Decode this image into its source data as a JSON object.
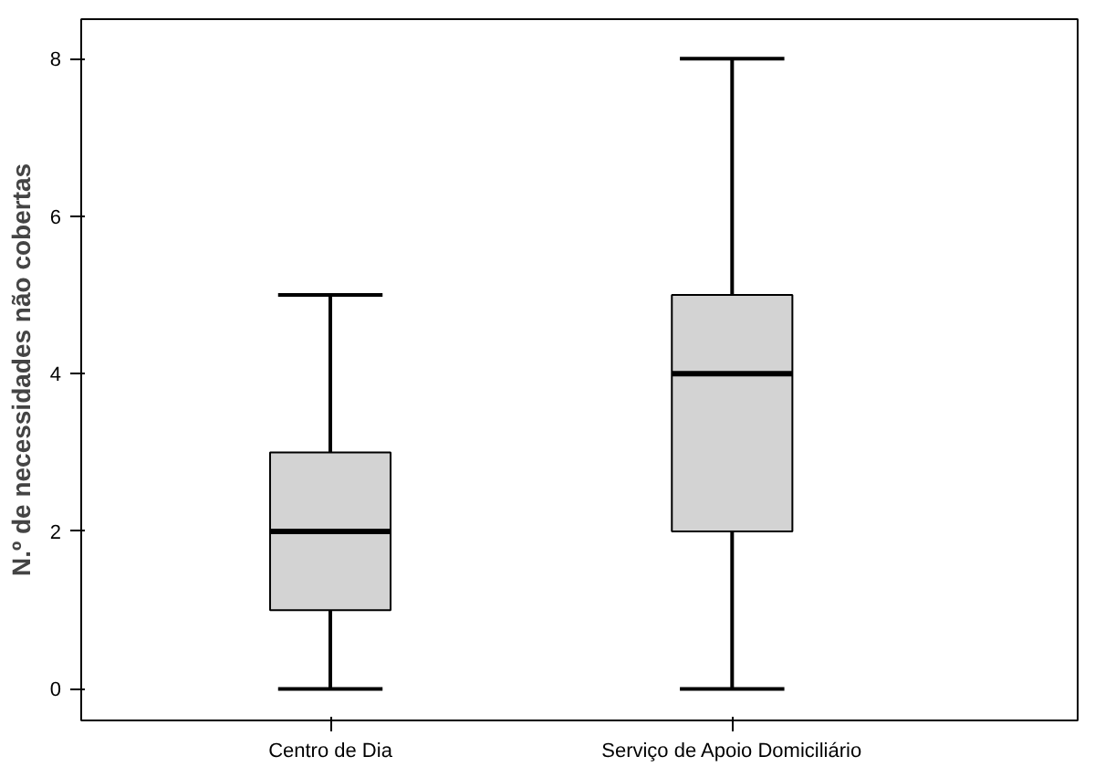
{
  "chart_data": {
    "type": "box",
    "ylabel": "N.º de necessidades não cobertas",
    "categories": [
      "Centro de Dia",
      "Serviço de Apoio Domiciliário"
    ],
    "boxes": [
      {
        "low": 0,
        "q1": 1,
        "median": 2,
        "q3": 3,
        "high": 5
      },
      {
        "low": 0,
        "q1": 2,
        "median": 4,
        "q3": 5,
        "high": 8
      }
    ],
    "color": "#d3d3d3",
    "ylim": [
      -0.4,
      8.5
    ],
    "yticks": [
      0,
      2,
      4,
      6,
      8
    ],
    "grid": false
  }
}
